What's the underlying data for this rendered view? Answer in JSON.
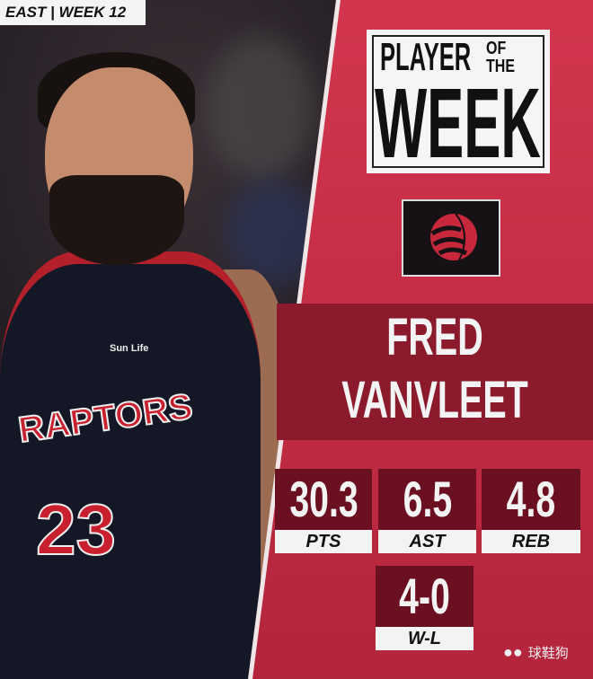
{
  "header": {
    "tag": "EAST | WEEK 12"
  },
  "award": {
    "line1": "PLAYER",
    "line1_small_a": "OF",
    "line1_small_b": "THE",
    "line2": "WEEK"
  },
  "team_logo": "raptors-basketball-claw-logo",
  "player": {
    "first_name": "FRED",
    "last_name": "VANVLEET",
    "jersey_text": "RAPTORS",
    "jersey_number": "23",
    "sponsor": "Sun Life"
  },
  "stats": [
    {
      "value": "30.3",
      "label": "PTS"
    },
    {
      "value": "6.5",
      "label": "AST"
    },
    {
      "value": "4.8",
      "label": "REB"
    },
    {
      "value": "4-0",
      "label": "W-L"
    }
  ],
  "watermark": "球鞋狗",
  "colors": {
    "panel_red": "#c8304a",
    "band_dark": "#8a1a2c",
    "stat_box": "#6a1020"
  }
}
